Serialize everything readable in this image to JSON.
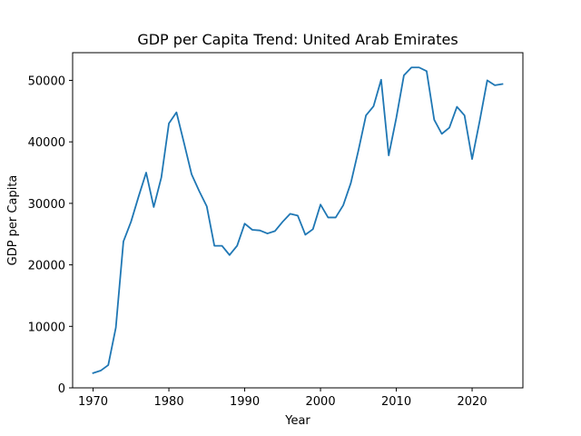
{
  "chart_data": {
    "type": "line",
    "title": "GDP per Capita Trend: United Arab Emirates",
    "xlabel": "Year",
    "ylabel": "GDP per Capita",
    "xlim": [
      1967.3,
      2026.7
    ],
    "ylim": [
      0,
      54500
    ],
    "xticks": [
      1970,
      1980,
      1990,
      2000,
      2010,
      2020
    ],
    "yticks": [
      0,
      10000,
      20000,
      30000,
      40000,
      50000
    ],
    "grid": false,
    "color": "#1f77b4",
    "series": [
      {
        "x": [
          1970,
          1971,
          1972,
          1973,
          1974,
          1975,
          1976,
          1977,
          1978,
          1979,
          1980,
          1981,
          1982,
          1983,
          1984,
          1985,
          1986,
          1987,
          1988,
          1989,
          1990,
          1991,
          1992,
          1993,
          1994,
          1995,
          1996,
          1997,
          1998,
          1999,
          2000,
          2001,
          2002,
          2003,
          2004,
          2005,
          2006,
          2007,
          2008,
          2009,
          2010,
          2011,
          2012,
          2013,
          2014,
          2015,
          2016,
          2017,
          2018,
          2019,
          2020,
          2021,
          2022,
          2023,
          2024
        ],
        "values": [
          2400,
          2800,
          3700,
          9800,
          23800,
          27000,
          31100,
          35000,
          29400,
          34200,
          43000,
          44800,
          39800,
          34700,
          32000,
          29500,
          23100,
          23100,
          21600,
          23100,
          26700,
          25700,
          25600,
          25100,
          25500,
          27000,
          28300,
          28000,
          24900,
          25800,
          29800,
          27700,
          27700,
          29700,
          33300,
          38600,
          44300,
          45800,
          50100,
          37800,
          43900,
          50800,
          52100,
          52100,
          51500,
          43600,
          41300,
          42300,
          45700,
          44300,
          37200,
          43400,
          50000,
          49200,
          49400
        ]
      }
    ]
  }
}
